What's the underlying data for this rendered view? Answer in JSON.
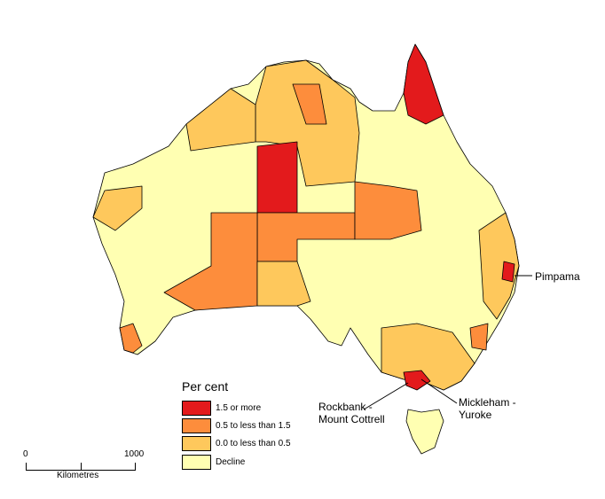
{
  "legend": {
    "title": "Per cent",
    "items": [
      {
        "label": "1.5 or more",
        "color": "#e31a1c"
      },
      {
        "label": "0.5 to less than 1.5",
        "color": "#fd8d3c"
      },
      {
        "label": "0.0 to less than 0.5",
        "color": "#fec85c"
      },
      {
        "label": "Decline",
        "color": "#ffffb2"
      }
    ]
  },
  "scale_bar": {
    "start": "0",
    "end": "1000",
    "unit": "Kilometres"
  },
  "annotations": {
    "pimpama": "Pimpama",
    "rockbank_1": "Rockbank -",
    "rockbank_2": "Mount Cottrell",
    "mickleham_1": "Mickleham -",
    "mickleham_2": "Yuroke"
  }
}
